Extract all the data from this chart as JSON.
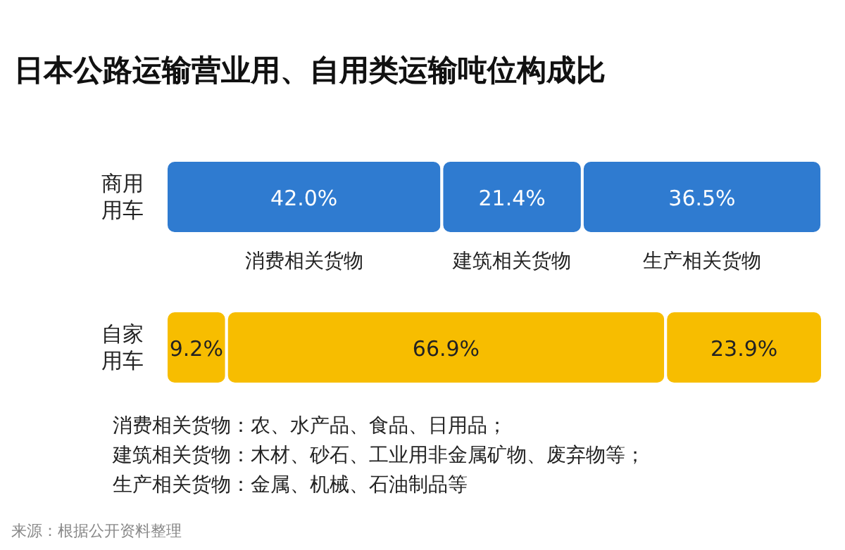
{
  "chart_data": {
    "type": "bar",
    "orientation": "horizontal",
    "stacked": true,
    "title": "日本公路运输营业用、自用类运输吨位构成比",
    "categories": [
      "商用用车",
      "自家用车"
    ],
    "series": [
      {
        "name": "消费相关货物",
        "colors": [
          "#2f7bd0",
          "#f7bd00"
        ],
        "values": [
          42.0,
          9.2
        ],
        "value_labels": [
          "42.0%",
          "9.2%"
        ]
      },
      {
        "name": "建筑相关货物",
        "colors": [
          "#2f7bd0",
          "#f7bd00"
        ],
        "values": [
          21.4,
          66.9
        ],
        "value_labels": [
          "21.4%",
          "66.9%"
        ]
      },
      {
        "name": "生产相关货物",
        "colors": [
          "#2f7bd0",
          "#f7bd00"
        ],
        "values": [
          36.5,
          23.9
        ],
        "value_labels": [
          "36.5%",
          "23.9%"
        ]
      }
    ],
    "legend": false,
    "grid": false,
    "tick_labels": "y",
    "annotations": [
      "消费相关货物：农、水产品、食品、日用品；",
      "建筑相关货物：木材、砂石、工业用非金属矿物、废弃物等；",
      "生产相关货物：金属、机械、石油制品等",
      "来源：根据公开资料整理"
    ]
  }
}
